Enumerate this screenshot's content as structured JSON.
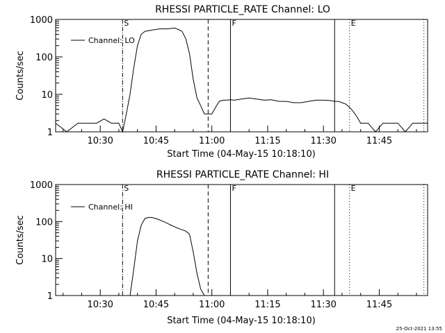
{
  "footer": {
    "timestamp": "25-Oct-2021 13:55"
  },
  "chart_data": [
    {
      "type": "line",
      "title": "RHESSI PARTICLE_RATE Channel: LO",
      "xlabel": "Start Time (04-May-15 10:18:10)",
      "ylabel": "Counts/sec",
      "yscale": "log",
      "ylim": [
        1,
        1000
      ],
      "xlim": [
        "10:18",
        "11:58"
      ],
      "xticks": [
        "10:30",
        "10:45",
        "11:00",
        "11:15",
        "11:30",
        "11:45"
      ],
      "yticks": [
        "1",
        "10",
        "100",
        "1000"
      ],
      "legend": {
        "label": "Channel: LO",
        "placement": "top-left"
      },
      "markers": [
        {
          "label": "S",
          "time": "10:36",
          "style": "dash-dot"
        },
        {
          "label": "",
          "time": "10:59",
          "style": "dashed"
        },
        {
          "label": "F",
          "time": "11:05",
          "style": "solid"
        },
        {
          "label": "",
          "time": "11:33",
          "style": "solid"
        },
        {
          "label": "E",
          "time": "11:37",
          "style": "dotted"
        },
        {
          "label": "",
          "time": "11:57",
          "style": "dotted"
        }
      ],
      "series": [
        {
          "name": "Channel: LO",
          "x": [
            "10:18",
            "10:21",
            "10:24",
            "10:27",
            "10:29",
            "10:31",
            "10:33",
            "10:35",
            "10:36",
            "10:37",
            "10:38",
            "10:39",
            "10:40",
            "10:41",
            "10:42",
            "10:44",
            "10:46",
            "10:48",
            "10:50",
            "10:51",
            "10:52",
            "10:53",
            "10:54",
            "10:55",
            "10:56",
            "10:57",
            "10:58",
            "10:59",
            "11:00",
            "11:01",
            "11:02",
            "11:03",
            "11:04",
            "11:05",
            "11:06",
            "11:08",
            "11:10",
            "11:12",
            "11:14",
            "11:16",
            "11:18",
            "11:20",
            "11:22",
            "11:24",
            "11:26",
            "11:28",
            "11:30",
            "11:32",
            "11:33",
            "11:34",
            "11:35",
            "11:36",
            "11:37",
            "11:38",
            "11:39",
            "11:40",
            "11:42",
            "11:44",
            "11:46",
            "11:48",
            "11:50",
            "11:52",
            "11:54",
            "11:56",
            "11:58"
          ],
          "y": [
            1.7,
            1.0,
            1.7,
            1.7,
            1.7,
            2.2,
            1.7,
            1.7,
            1.0,
            3,
            10,
            50,
            200,
            400,
            480,
            520,
            560,
            560,
            590,
            540,
            480,
            300,
            120,
            25,
            8,
            5,
            3,
            3,
            3,
            4.5,
            6.5,
            7,
            7,
            7.2,
            7,
            7.5,
            8,
            7.5,
            7,
            7.2,
            6.5,
            6.5,
            6,
            6,
            6.5,
            7,
            7,
            6.8,
            6.5,
            6.5,
            6,
            5.5,
            4.5,
            3.5,
            2.5,
            1.7,
            1.7,
            1.0,
            1.7,
            1.7,
            1.7,
            1.0,
            1.7,
            1.7,
            1.7
          ]
        }
      ]
    },
    {
      "type": "line",
      "title": "RHESSI PARTICLE_RATE Channel: HI",
      "xlabel": "Start Time (04-May-15 10:18:10)",
      "ylabel": "Counts/sec",
      "yscale": "log",
      "ylim": [
        1,
        1000
      ],
      "xlim": [
        "10:18",
        "11:58"
      ],
      "xticks": [
        "10:30",
        "10:45",
        "11:00",
        "11:15",
        "11:30",
        "11:45"
      ],
      "yticks": [
        "1",
        "10",
        "100",
        "1000"
      ],
      "legend": {
        "label": "Channel: HI",
        "placement": "top-left"
      },
      "markers": [
        {
          "label": "S",
          "time": "10:36",
          "style": "dash-dot"
        },
        {
          "label": "",
          "time": "10:59",
          "style": "dashed"
        },
        {
          "label": "F",
          "time": "11:05",
          "style": "solid"
        },
        {
          "label": "",
          "time": "11:33",
          "style": "solid"
        },
        {
          "label": "E",
          "time": "11:37",
          "style": "dotted"
        },
        {
          "label": "",
          "time": "11:57",
          "style": "dotted"
        }
      ],
      "series": [
        {
          "name": "Channel: HI",
          "x": [
            "10:38",
            "10:39",
            "10:40",
            "10:41",
            "10:42",
            "10:43",
            "10:44",
            "10:45",
            "10:46",
            "10:47",
            "10:48",
            "10:49",
            "10:50",
            "10:51",
            "10:52",
            "10:53",
            "10:54",
            "10:55",
            "10:56",
            "10:57",
            "10:58"
          ],
          "y": [
            1.0,
            5,
            30,
            80,
            120,
            130,
            128,
            120,
            110,
            100,
            90,
            80,
            72,
            65,
            60,
            55,
            45,
            15,
            4,
            1.5,
            1.0
          ]
        }
      ]
    }
  ]
}
